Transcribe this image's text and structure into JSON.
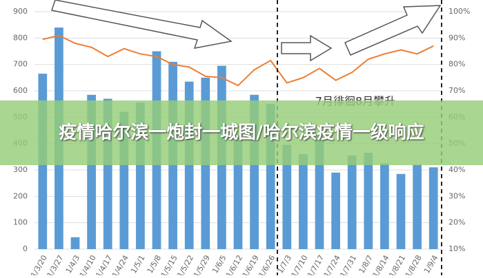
{
  "banner": "疫情哈尔滨一炮封一城图/哈尔滨疫情一级响应",
  "chart_data": {
    "type": "bar-line",
    "annotation": "7月徘徊8月攀升",
    "categories": [
      "1/3/20",
      "1/3/27",
      "1/4/3",
      "1/4/10",
      "1/4/17",
      "1/4/24",
      "1/5/1",
      "1/5/8",
      "1/5/15",
      "1/5/22",
      "1/5/29",
      "1/6/5",
      "1/6/12",
      "1/6/19",
      "1/6/26",
      "1/7/3",
      "1/7/10",
      "1/7/17",
      "1/7/24",
      "1/7/31",
      "1/8/7",
      "1/8/14",
      "1/8/21",
      "1/8/28",
      "1/9/4"
    ],
    "series": [
      {
        "type": "bar",
        "color": "#5b9bd5",
        "values": [
          665,
          840,
          45,
          585,
          570,
          520,
          555,
          750,
          710,
          635,
          650,
          695,
          430,
          585,
          550,
          395,
          360,
          440,
          290,
          355,
          365,
          325,
          285,
          320,
          310
        ]
      },
      {
        "type": "line",
        "axis": "y2",
        "color": "#ed7d31",
        "values": [
          89.5,
          91,
          88,
          86.5,
          83,
          86,
          84,
          83,
          80,
          79,
          75.5,
          75,
          72,
          78,
          81.5,
          73,
          75,
          78.5,
          74,
          77,
          82,
          84,
          85.5,
          84,
          87
        ]
      }
    ],
    "ylim": [
      0,
      900
    ],
    "yticks": [
      0,
      100,
      200,
      300,
      400,
      500,
      600,
      700,
      800,
      900
    ],
    "y2lim": [
      10,
      100
    ],
    "y2ticks": [
      {
        "value": 10,
        "label": "10%"
      },
      {
        "value": 20,
        "label": "20%"
      },
      {
        "value": 30,
        "label": "30%"
      },
      {
        "value": 40,
        "label": "40%"
      },
      {
        "value": 50,
        "label": "50%"
      },
      {
        "value": 60,
        "label": "60%"
      },
      {
        "value": 70,
        "label": "70%"
      },
      {
        "value": 80,
        "label": "80%"
      },
      {
        "value": 90,
        "label": "90%"
      },
      {
        "value": 100,
        "label": "100%"
      }
    ],
    "grid": true
  }
}
